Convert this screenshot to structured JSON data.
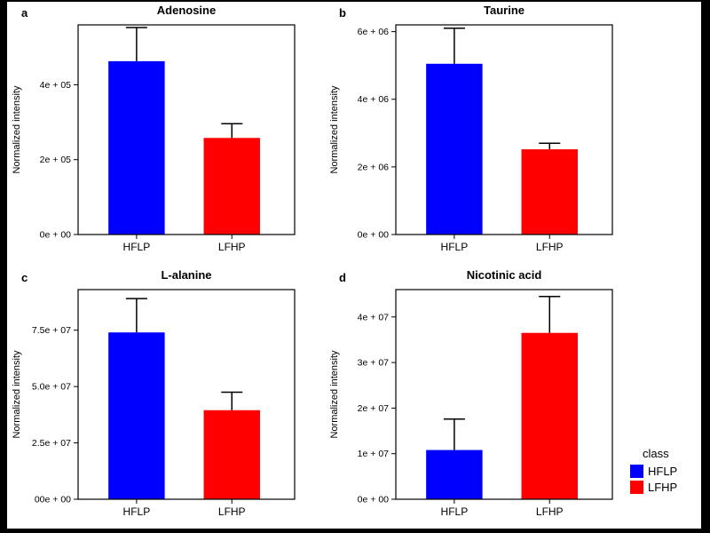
{
  "figure": {
    "background": "#ffffff",
    "frame_color": "#000000",
    "text_color": "#000000"
  },
  "legend": {
    "title": "class",
    "items": [
      {
        "label": "HFLP",
        "color": "#0000ff"
      },
      {
        "label": "LFHP",
        "color": "#ff0000"
      }
    ]
  },
  "chart_data": [
    {
      "type": "bar",
      "panel": "a",
      "title": "Adenosine",
      "ylabel": "Normalized intensity",
      "categories": [
        "HFLP",
        "LFHP"
      ],
      "values": [
        463000,
        258000
      ],
      "errors_upper": [
        90000,
        38000
      ],
      "ylim": [
        0,
        560000
      ],
      "yticks": [
        {
          "value": 0,
          "label": "0e + 00"
        },
        {
          "value": 200000,
          "label": "2e + 05"
        },
        {
          "value": 400000,
          "label": "4e + 05"
        }
      ],
      "grid": false,
      "legend_position": "none",
      "bar_colors": [
        "#0000ff",
        "#ff0000"
      ]
    },
    {
      "type": "bar",
      "panel": "b",
      "title": "Taurine",
      "ylabel": "Normalized intensity",
      "categories": [
        "HFLP",
        "LFHP"
      ],
      "values": [
        5050000,
        2520000
      ],
      "errors_upper": [
        1050000,
        180000
      ],
      "ylim": [
        0,
        6200000
      ],
      "yticks": [
        {
          "value": 0,
          "label": "0e + 00"
        },
        {
          "value": 2000000,
          "label": "2e + 06"
        },
        {
          "value": 4000000,
          "label": "4e + 06"
        },
        {
          "value": 6000000,
          "label": "6e + 06"
        }
      ],
      "grid": false,
      "legend_position": "none",
      "bar_colors": [
        "#0000ff",
        "#ff0000"
      ]
    },
    {
      "type": "bar",
      "panel": "c",
      "title": "L-alanine",
      "ylabel": "Normalized intensity",
      "categories": [
        "HFLP",
        "LFHP"
      ],
      "values": [
        74000000,
        39500000
      ],
      "errors_upper": [
        15000000,
        8000000
      ],
      "ylim": [
        0,
        93000000
      ],
      "yticks": [
        {
          "value": 0,
          "label": "00e + 00"
        },
        {
          "value": 25000000,
          "label": "2.5e + 07"
        },
        {
          "value": 50000000,
          "label": "5.0e + 07"
        },
        {
          "value": 75000000,
          "label": "7.5e + 07"
        }
      ],
      "grid": false,
      "legend_position": "none",
      "bar_colors": [
        "#0000ff",
        "#ff0000"
      ]
    },
    {
      "type": "bar",
      "panel": "d",
      "title": "Nicotinic acid",
      "ylabel": "Normalized intensity",
      "categories": [
        "HFLP",
        "LFHP"
      ],
      "values": [
        10800000,
        36500000
      ],
      "errors_upper": [
        6800000,
        8000000
      ],
      "ylim": [
        0,
        46000000
      ],
      "yticks": [
        {
          "value": 0,
          "label": "0e + 00"
        },
        {
          "value": 10000000,
          "label": "1e + 07"
        },
        {
          "value": 20000000,
          "label": "2e + 07"
        },
        {
          "value": 30000000,
          "label": "3e + 07"
        },
        {
          "value": 40000000,
          "label": "4e + 07"
        }
      ],
      "grid": false,
      "legend_position": "outside-bottom-right",
      "bar_colors": [
        "#0000ff",
        "#ff0000"
      ]
    }
  ]
}
